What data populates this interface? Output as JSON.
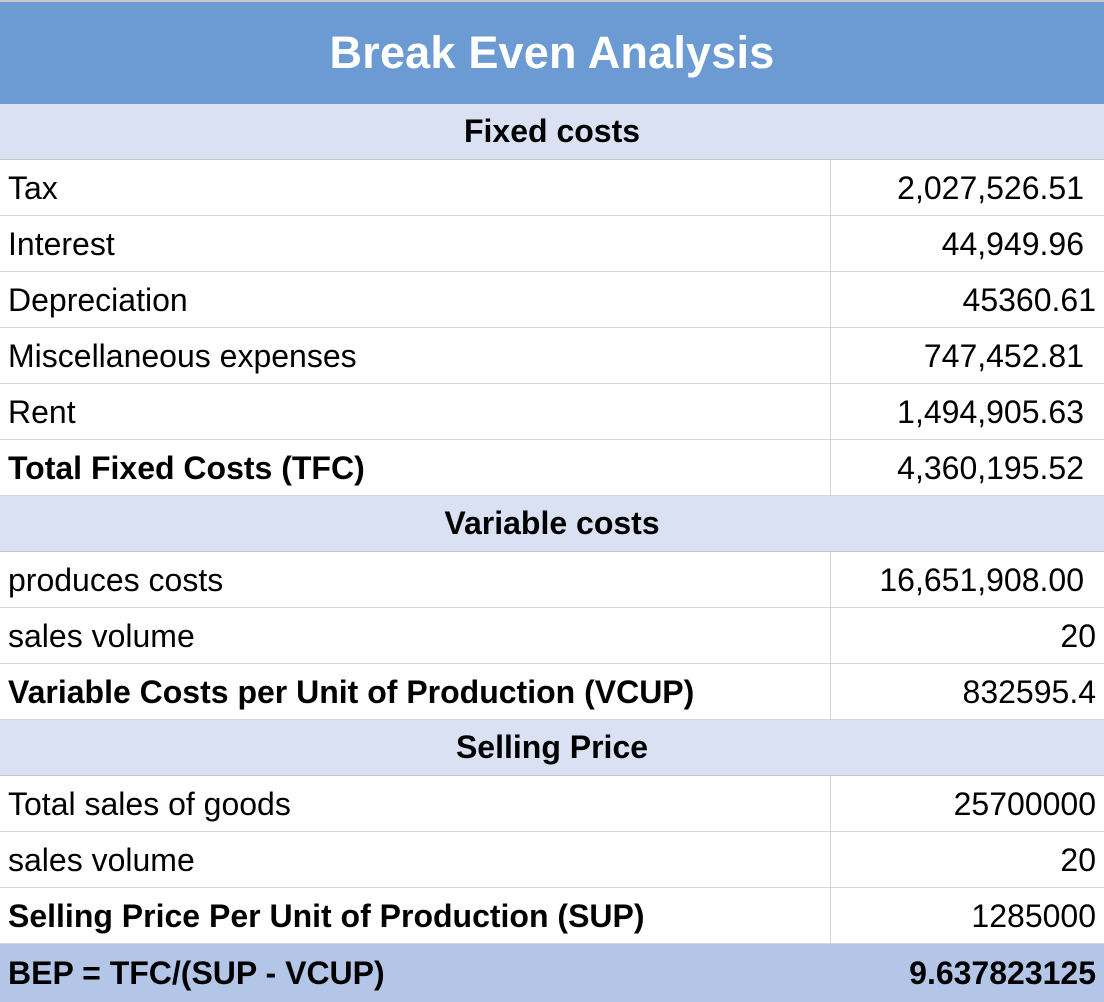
{
  "title": "Break Even Analysis",
  "sections": {
    "fixed": "Fixed costs",
    "variable": "Variable costs",
    "selling": "Selling Price"
  },
  "fixed_costs": [
    {
      "label": "Tax",
      "value": "2,027,526.51"
    },
    {
      "label": "Interest",
      "value": "44,949.96"
    },
    {
      "label": "Depreciation",
      "value": "45360.61"
    },
    {
      "label": "Miscellaneous expenses",
      "value": "747,452.81"
    },
    {
      "label": "Rent",
      "value": "1,494,905.63"
    },
    {
      "label": "Total Fixed Costs (TFC)",
      "value": "4,360,195.52"
    }
  ],
  "variable_costs": [
    {
      "label": "produces costs",
      "value": "16,651,908.00"
    },
    {
      "label": "sales volume",
      "value": "20"
    },
    {
      "label": "Variable Costs per Unit of Production (VCUP)",
      "value": "832595.4"
    }
  ],
  "selling_price": [
    {
      "label": "Total sales of goods",
      "value": "25700000"
    },
    {
      "label": "sales volume",
      "value": "20"
    },
    {
      "label": "Selling Price Per Unit of Production (SUP)",
      "value": "1285000"
    }
  ],
  "bep": {
    "label": "BEP = TFC/(SUP - VCUP)",
    "value": "9.637823125"
  },
  "colors": {
    "title_bg": "#6b9bd2",
    "section_bg": "#d9e1f2",
    "bep_bg": "#b4c6e7"
  }
}
